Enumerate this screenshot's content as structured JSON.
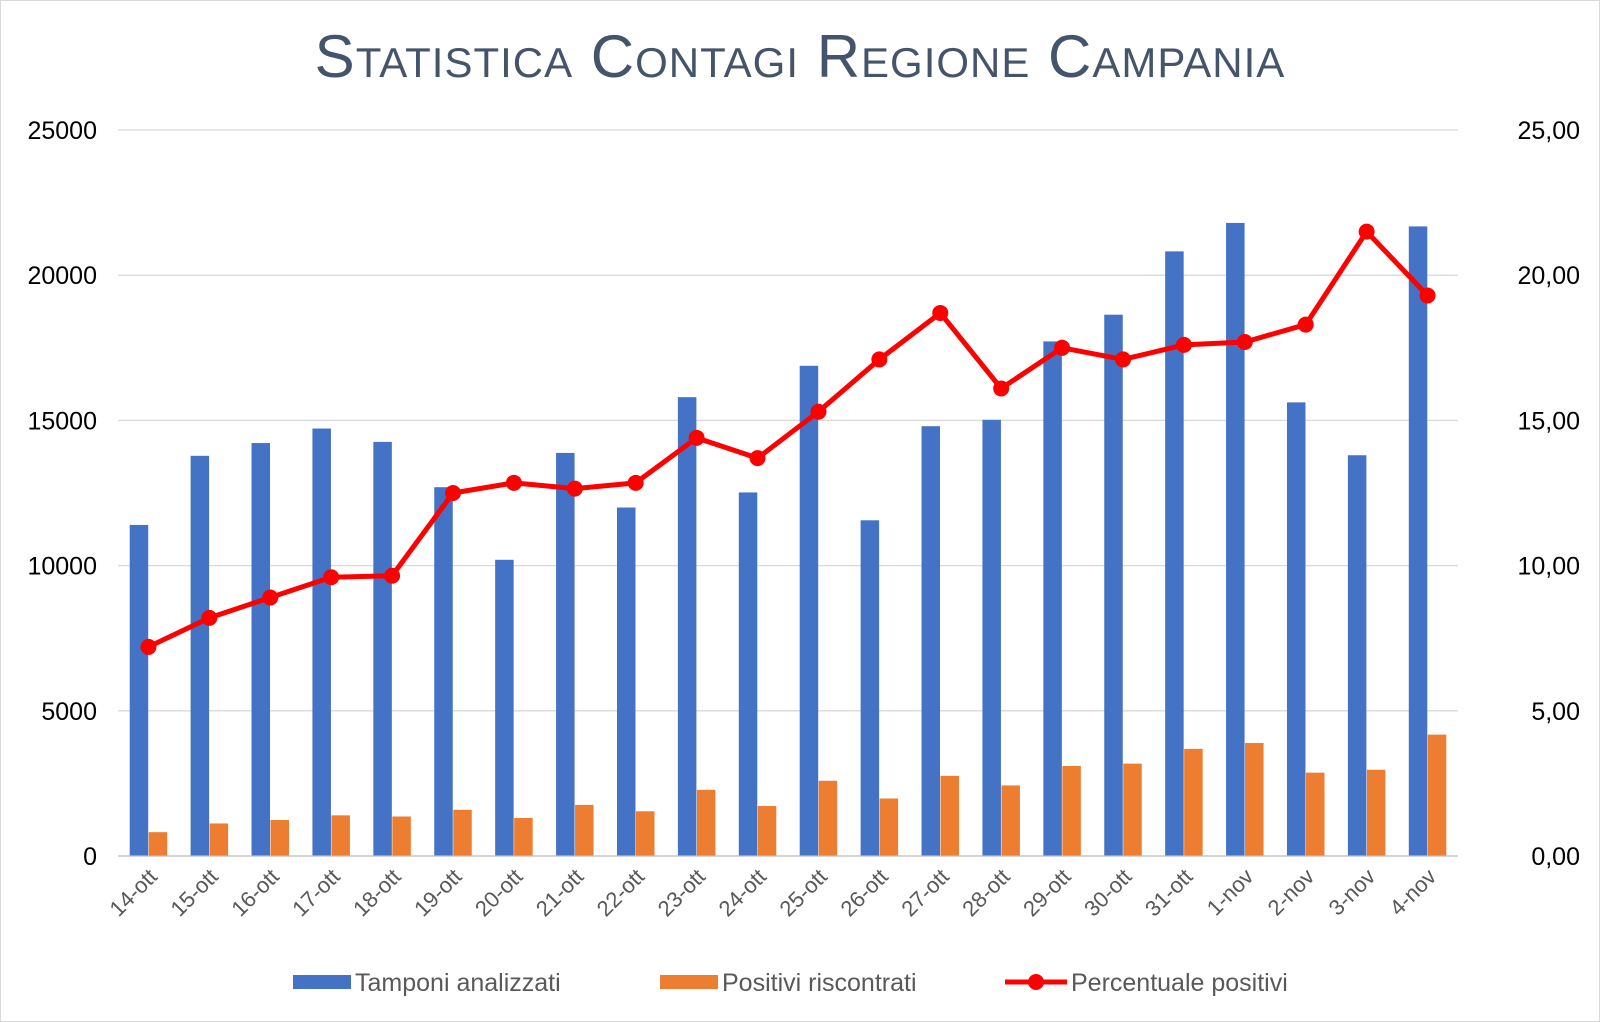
{
  "chart_data": {
    "type": "bar",
    "title": "Statistica Contagi Regione Campania",
    "categories": [
      "14-ott",
      "15-ott",
      "16-ott",
      "17-ott",
      "18-ott",
      "19-ott",
      "20-ott",
      "21-ott",
      "22-ott",
      "23-ott",
      "24-ott",
      "25-ott",
      "26-ott",
      "27-ott",
      "28-ott",
      "29-ott",
      "30-ott",
      "31-ott",
      "1-nov",
      "2-nov",
      "3-nov",
      "4-nov"
    ],
    "series": [
      {
        "name": "Tamponi analizzati",
        "type": "bar",
        "axis": "left",
        "color": "#4472c4",
        "values": [
          11400,
          13780,
          14220,
          14720,
          14260,
          12700,
          10200,
          13880,
          12000,
          15800,
          12520,
          16880,
          11560,
          14800,
          15020,
          17720,
          18640,
          20820,
          21800,
          15620,
          13800,
          21680
        ]
      },
      {
        "name": "Positivi riscontrati",
        "type": "bar",
        "axis": "left",
        "color": "#ed7d31",
        "values": [
          820,
          1120,
          1240,
          1400,
          1360,
          1590,
          1310,
          1760,
          1540,
          2280,
          1720,
          2590,
          1980,
          2760,
          2430,
          3100,
          3180,
          3690,
          3890,
          2870,
          2970,
          4180
        ]
      },
      {
        "name": "Percentuale positivi",
        "type": "line",
        "axis": "right",
        "color": "#ff0000",
        "values": [
          7.2,
          8.2,
          8.9,
          9.6,
          9.65,
          12.5,
          12.85,
          12.65,
          12.85,
          14.4,
          13.7,
          15.3,
          17.1,
          18.7,
          16.1,
          17.5,
          17.1,
          17.6,
          17.7,
          18.3,
          21.5,
          19.3
        ]
      }
    ],
    "ylim": [
      0,
      25000
    ],
    "y2lim": [
      0,
      25
    ],
    "yticks": [
      "0",
      "5000",
      "10000",
      "15000",
      "20000",
      "25000"
    ],
    "y2ticks": [
      "0,00",
      "5,00",
      "10,00",
      "15,00",
      "20,00",
      "25,00"
    ],
    "xlabel": "",
    "ylabel": "",
    "grid": true,
    "legend": "bottom"
  }
}
